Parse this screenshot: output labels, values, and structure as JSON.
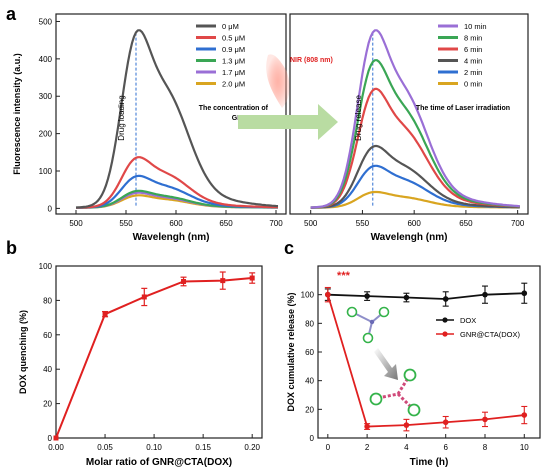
{
  "chart_data": [
    {
      "panel": "a",
      "type": "line",
      "part": "left",
      "xlabel": "Wavelengh (nm)",
      "ylabel": "Fluorescence intensity (a.u.)",
      "xlim": [
        480,
        710
      ],
      "ylim": [
        -15,
        520
      ],
      "xticks": [
        500,
        550,
        600,
        650,
        700
      ],
      "yticks": [
        0,
        100,
        200,
        300,
        400,
        500
      ],
      "legend_placement": "top-right",
      "annotation_vertical": "Drug loading",
      "annotation_text": [
        "The concentration of",
        "GNR@CTA"
      ],
      "peak_x": 560,
      "series": [
        {
          "name": "0 μM",
          "color": "#555555",
          "peak": 475
        },
        {
          "name": "0.5 μM",
          "color": "#e04848",
          "peak": 135
        },
        {
          "name": "0.9 μM",
          "color": "#2f6fd1",
          "peak": 85
        },
        {
          "name": "1.3 μM",
          "color": "#3aa655",
          "peak": 45
        },
        {
          "name": "1.7 μM",
          "color": "#9a6fd6",
          "peak": 40
        },
        {
          "name": "2.0 μM",
          "color": "#d9a520",
          "peak": 33
        }
      ]
    },
    {
      "panel": "a",
      "type": "line",
      "part": "right",
      "xlabel": "Wavelengh (nm)",
      "xlim": [
        480,
        710
      ],
      "ylim": [
        -15,
        520
      ],
      "xticks": [
        500,
        550,
        600,
        650,
        700
      ],
      "legend_placement": "top-right",
      "annotation_vertical": "Drug release",
      "annotation_text": [
        "The time of Laser irradiation"
      ],
      "peak_x": 560,
      "series": [
        {
          "name": "10 min",
          "color": "#9a6fd6",
          "peak": 475
        },
        {
          "name": "8 min",
          "color": "#3aa655",
          "peak": 395
        },
        {
          "name": "6 min",
          "color": "#e04848",
          "peak": 318
        },
        {
          "name": "4 min",
          "color": "#555555",
          "peak": 165
        },
        {
          "name": "2 min",
          "color": "#2f6fd1",
          "peak": 112
        },
        {
          "name": "0 min",
          "color": "#d9a520",
          "peak": 42
        }
      ]
    },
    {
      "panel": "b",
      "type": "line",
      "xlabel": "Molar ratio of GNR@CTA(DOX)",
      "ylabel": "DOX quenching (%)",
      "xlim": [
        0,
        0.21
      ],
      "ylim": [
        0,
        100
      ],
      "xticks": [
        "0.00",
        "0.05",
        "0.10",
        "0.15",
        "0.20"
      ],
      "yticks": [
        0,
        20,
        40,
        60,
        80,
        100
      ],
      "color": "#e02020",
      "series": [
        {
          "x": [
            0,
            0.05,
            0.09,
            0.13,
            0.17,
            0.2
          ],
          "y": [
            0,
            72,
            82,
            91,
            91.5,
            93
          ],
          "err": [
            0,
            1.5,
            5,
            2.5,
            5,
            3
          ]
        }
      ]
    },
    {
      "panel": "c",
      "type": "line",
      "xlabel": "Time (h)",
      "ylabel": "DOX cumulative release (%)",
      "xlim": [
        -0.5,
        10.8
      ],
      "ylim": [
        0,
        120
      ],
      "xticks": [
        0,
        2,
        4,
        6,
        8,
        10
      ],
      "yticks": [
        0,
        20,
        40,
        60,
        80,
        100
      ],
      "legend_placement": "right",
      "annotation_text": [
        "***"
      ],
      "series": [
        {
          "name": "DOX",
          "color": "#111111",
          "x": [
            0,
            2,
            4,
            6,
            8,
            10
          ],
          "y": [
            100,
            99,
            98,
            97,
            100,
            101
          ],
          "err": [
            4,
            3,
            3,
            5,
            6,
            7
          ]
        },
        {
          "name": "GNR@CTA(DOX)",
          "color": "#e02020",
          "x": [
            0,
            2,
            4,
            6,
            8,
            10
          ],
          "y": [
            100,
            8,
            9,
            11,
            13,
            16
          ],
          "err": [
            5,
            2,
            4,
            4,
            5,
            6
          ]
        }
      ]
    }
  ],
  "panels": {
    "a": "a",
    "b": "b",
    "c": "c"
  },
  "nir_label": "NIR (808 nm)",
  "colors": {
    "arrow_green": "#b9dca2",
    "nir_glow": "#ff8c7a"
  }
}
